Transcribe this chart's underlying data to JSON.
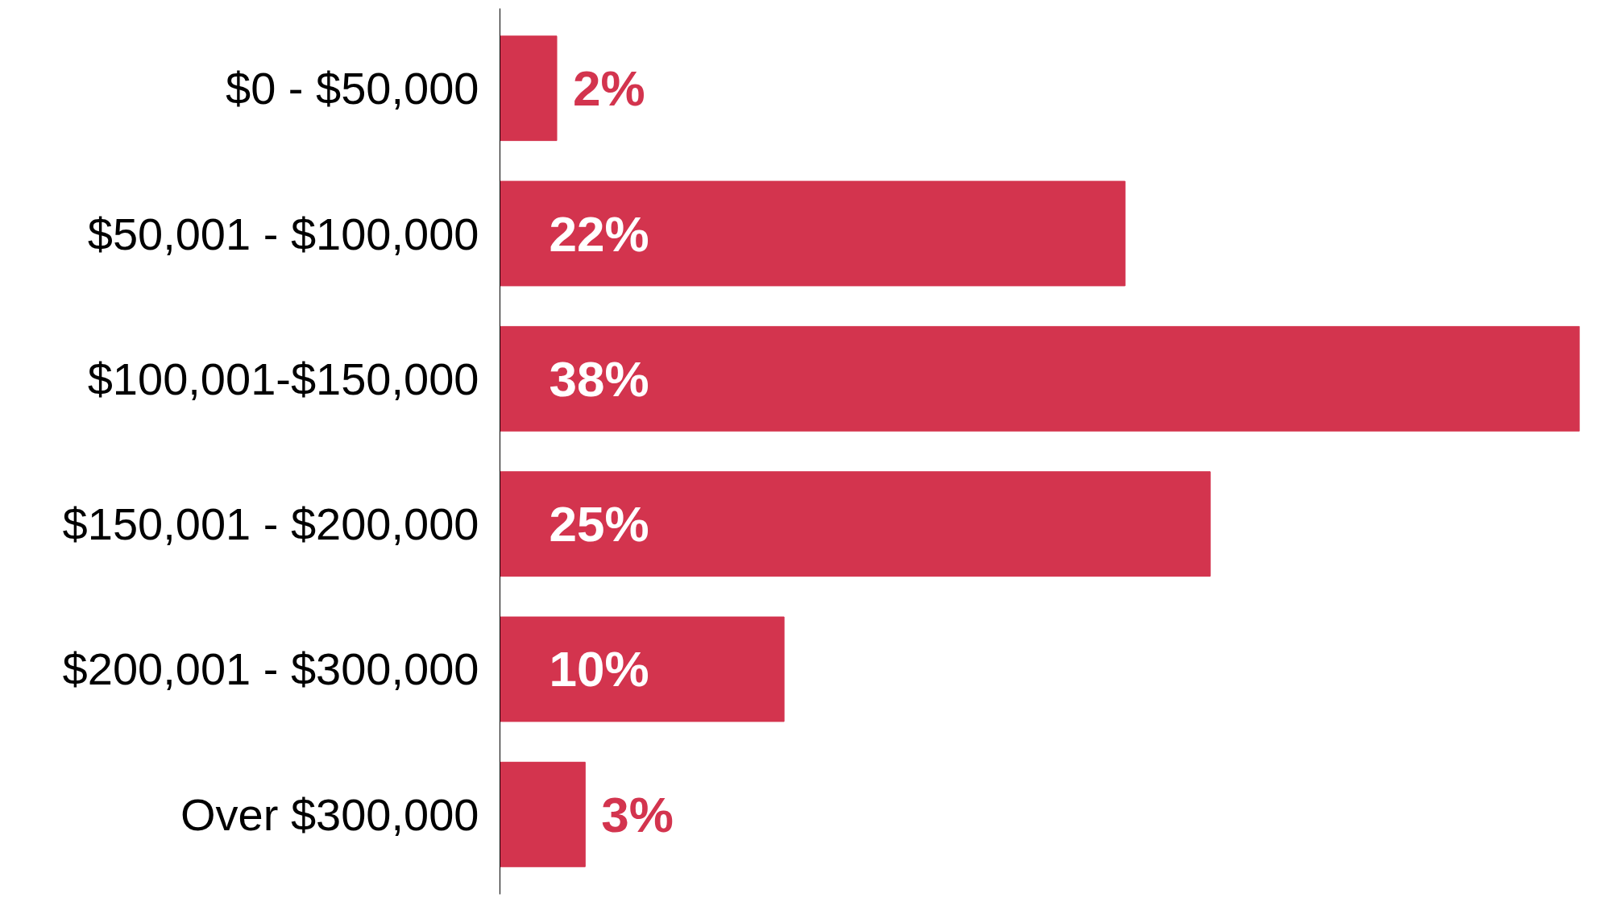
{
  "chart_data": {
    "type": "bar",
    "orientation": "horizontal",
    "categories": [
      "$0 - $50,000",
      "$50,001 - $100,000",
      "$100,001-$150,000",
      "$150,001 - $200,000",
      "$200,001 - $300,000",
      "Over $300,000"
    ],
    "values": [
      2,
      22,
      38,
      25,
      10,
      3
    ],
    "value_labels": [
      "2%",
      "22%",
      "38%",
      "25%",
      "10%",
      "3%"
    ],
    "color": "#d3344e",
    "grid": false,
    "tick_labels": "y"
  }
}
